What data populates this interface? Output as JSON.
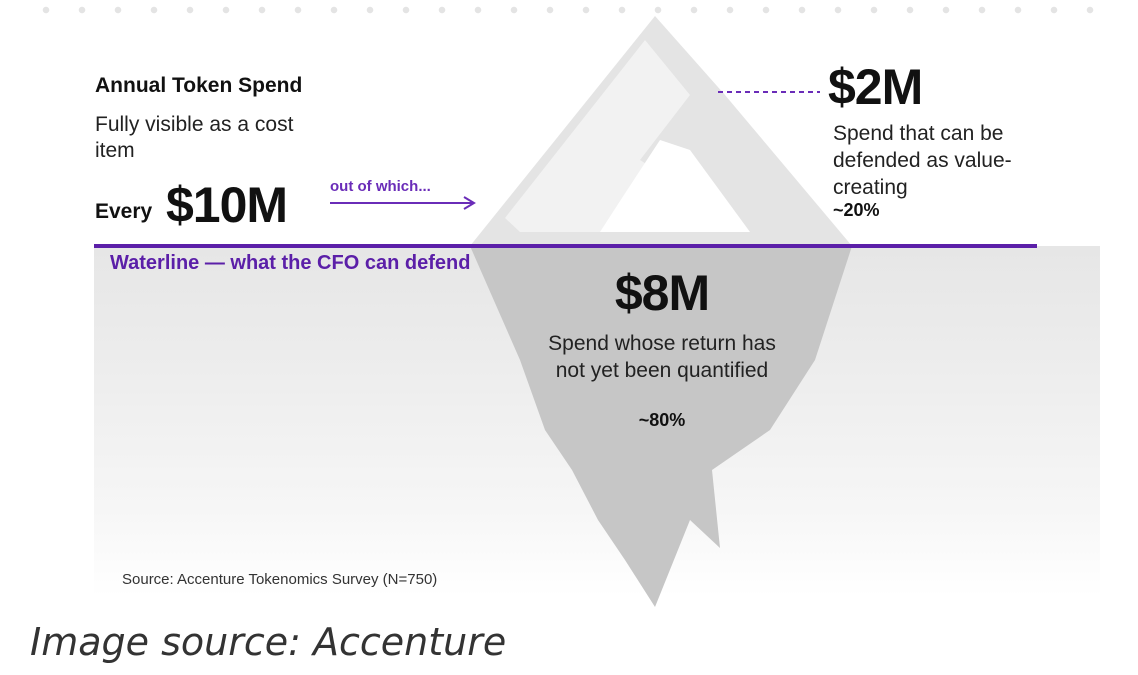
{
  "header": {
    "title": "Annual Token Spend",
    "subtitle": "Fully visible as a cost item"
  },
  "total": {
    "label": "Every",
    "value": "$10M",
    "connector": "out of which..."
  },
  "waterline": {
    "label": "Waterline — what the CFO can defend"
  },
  "above_water": {
    "value": "$2M",
    "description": "Spend that can be defended as value-creating",
    "percent": "~20%",
    "share": 0.2
  },
  "below_water": {
    "value": "$8M",
    "description": "Spend whose return has not yet been quantified",
    "percent": "~80%",
    "share": 0.8
  },
  "source": "Source: Accenture Tokenomics Survey (N=750)",
  "caption": "Image source: Accenture",
  "colors": {
    "accent_purple": "#5b1fa8",
    "iceberg_gray": "#c8c8c8",
    "water_gray": "#e8e8e8",
    "text": "#111111"
  }
}
